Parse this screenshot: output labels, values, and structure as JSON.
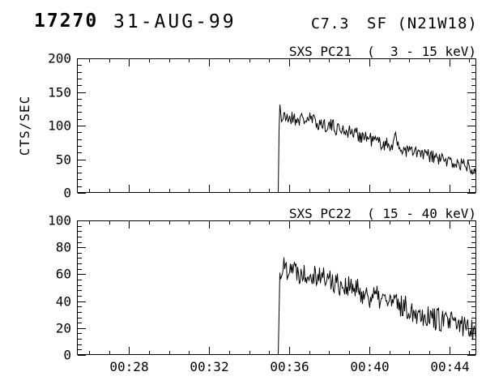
{
  "header": {
    "flare_number": "17270",
    "date": "31-AUG-99",
    "goes_class": "C7.3",
    "flare_type_location": "SF (N21W18)"
  },
  "colors": {
    "foreground": "#000000",
    "background": "#ffffff"
  },
  "chart_data": [
    {
      "type": "line",
      "title": "SXS PC21  (  3 - 15 keV)",
      "ylabel": "CTS/SEC",
      "ylim": [
        0,
        200
      ],
      "ytick_values": [
        0,
        50,
        100,
        150,
        200
      ],
      "ytick_labels": [
        "0",
        "50",
        "100",
        "150",
        "200"
      ],
      "y_minor_step": 10,
      "x_minutes_range": [
        25.4,
        45.35
      ],
      "xtick_minutes": [
        28,
        32,
        36,
        40,
        44
      ],
      "xtick_labels": [
        "00:28",
        "00:32",
        "00:36",
        "00:40",
        "00:44"
      ],
      "x_minor_step_minutes": 1,
      "show_x_labels": false,
      "grid": false,
      "line_color": "#000000",
      "noise_amplitude": 11,
      "seed": 21,
      "onset_minute": 35.45,
      "trend_points": [
        [
          35.45,
          0
        ],
        [
          35.49,
          140
        ],
        [
          35.6,
          110
        ],
        [
          36.0,
          112
        ],
        [
          36.5,
          109
        ],
        [
          37.0,
          110
        ],
        [
          37.4,
          104
        ],
        [
          37.9,
          101
        ],
        [
          38.3,
          97
        ],
        [
          38.8,
          93
        ],
        [
          39.3,
          88
        ],
        [
          39.8,
          83
        ],
        [
          40.3,
          77
        ],
        [
          40.8,
          72
        ],
        [
          41.15,
          70
        ],
        [
          41.25,
          98
        ],
        [
          41.35,
          68
        ],
        [
          41.9,
          63
        ],
        [
          42.4,
          59
        ],
        [
          42.9,
          55
        ],
        [
          43.4,
          51
        ],
        [
          43.9,
          47
        ],
        [
          44.4,
          43
        ],
        [
          44.9,
          41
        ],
        [
          45.35,
          37
        ]
      ]
    },
    {
      "type": "line",
      "title": "SXS PC22  ( 15 - 40 keV)",
      "ylabel": "",
      "ylim": [
        0,
        100
      ],
      "ytick_values": [
        0,
        20,
        40,
        60,
        80,
        100
      ],
      "ytick_labels": [
        "0",
        "20",
        "40",
        "60",
        "80",
        "100"
      ],
      "y_minor_step": 4,
      "x_minutes_range": [
        25.4,
        45.35
      ],
      "xtick_minutes": [
        28,
        32,
        36,
        40,
        44
      ],
      "xtick_labels": [
        "00:28",
        "00:32",
        "00:36",
        "00:40",
        "00:44"
      ],
      "x_minor_step_minutes": 1,
      "show_x_labels": true,
      "grid": false,
      "line_color": "#000000",
      "noise_amplitude": 9,
      "seed": 22,
      "onset_minute": 35.45,
      "trend_points": [
        [
          35.45,
          0
        ],
        [
          35.5,
          58
        ],
        [
          35.65,
          66
        ],
        [
          35.85,
          64
        ],
        [
          36.05,
          68
        ],
        [
          36.3,
          63
        ],
        [
          36.7,
          61
        ],
        [
          37.1,
          62
        ],
        [
          37.5,
          59
        ],
        [
          38.0,
          56
        ],
        [
          38.5,
          53
        ],
        [
          39.0,
          50
        ],
        [
          39.5,
          47
        ],
        [
          40.0,
          44
        ],
        [
          40.5,
          42
        ],
        [
          41.0,
          40
        ],
        [
          41.5,
          37
        ],
        [
          42.0,
          34
        ],
        [
          42.5,
          31
        ],
        [
          43.0,
          29
        ],
        [
          43.5,
          26
        ],
        [
          44.0,
          24
        ],
        [
          44.5,
          22
        ],
        [
          45.0,
          21
        ],
        [
          45.35,
          19
        ]
      ]
    }
  ]
}
